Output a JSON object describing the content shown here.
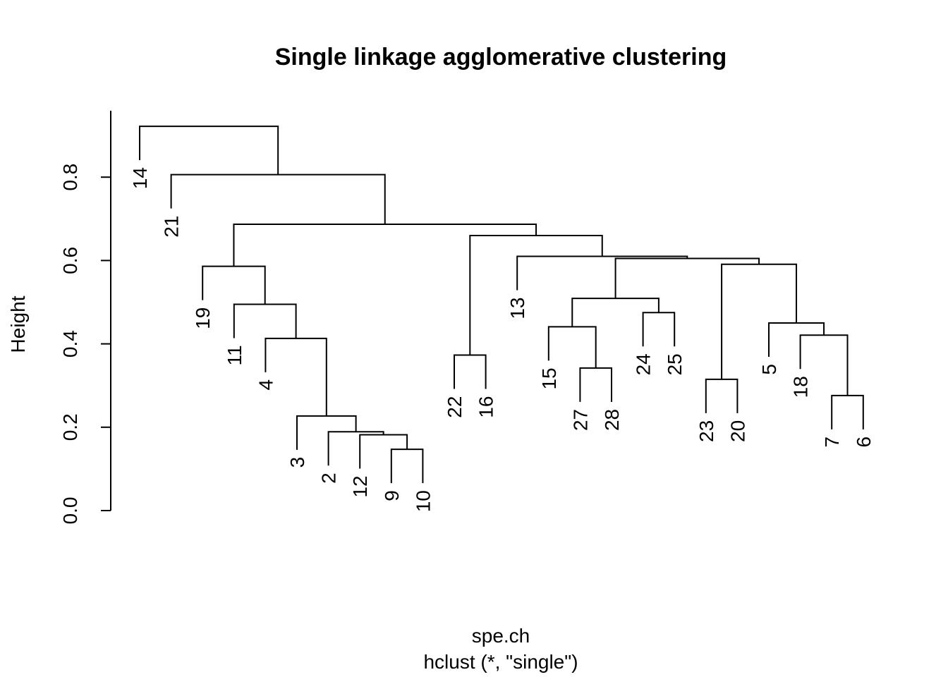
{
  "chart_data": {
    "type": "dendrogram",
    "title": "Single linkage agglomerative clustering",
    "xlabel": "spe.ch",
    "sublabel": "hclust (*, \"single\")",
    "ylabel": "Height",
    "ylim": [
      0,
      0.92
    ],
    "yticks": [
      0.0,
      0.2,
      0.4,
      0.6,
      0.8
    ],
    "ytick_labels": [
      "0.0",
      "0.2",
      "0.4",
      "0.6",
      "0.8"
    ],
    "leaves": [
      "14",
      "21",
      "19",
      "11",
      "4",
      "3",
      "2",
      "12",
      "9",
      "10",
      "22",
      "16",
      "13",
      "15",
      "27",
      "28",
      "24",
      "25",
      "23",
      "20",
      "5",
      "18",
      "7",
      "6"
    ],
    "merges": [
      {
        "a": "9",
        "b": "10",
        "height": 0.147
      },
      {
        "a": "12",
        "b": "9+10",
        "height": 0.182
      },
      {
        "a": "2",
        "b": "12+9+10",
        "height": 0.189
      },
      {
        "a": "3",
        "b": "2+12+9+10",
        "height": 0.227
      },
      {
        "a": "7",
        "b": "6",
        "height": 0.276
      },
      {
        "a": "23",
        "b": "20",
        "height": 0.315
      },
      {
        "a": "27",
        "b": "28",
        "height": 0.342
      },
      {
        "a": "22",
        "b": "16",
        "height": 0.373
      },
      {
        "a": "4",
        "b": "3+2+12+9+10",
        "height": 0.413
      },
      {
        "a": "18",
        "b": "7+6",
        "height": 0.421
      },
      {
        "a": "15",
        "b": "27+28",
        "height": 0.441
      },
      {
        "a": "5",
        "b": "18+7+6",
        "height": 0.45
      },
      {
        "a": "24",
        "b": "25",
        "height": 0.475
      },
      {
        "a": "11",
        "b": "4+3+2+12+9+10",
        "height": 0.495
      },
      {
        "a": "15+27+28",
        "b": "24+25",
        "height": 0.509
      },
      {
        "a": "19",
        "b": "11+4+...",
        "height": 0.586
      },
      {
        "a": "23+20",
        "b": "5+18+7+6",
        "height": 0.591
      },
      {
        "a": "15+27+28+24+25",
        "b": "23+20+5+18+7+6",
        "height": 0.605
      },
      {
        "a": "13",
        "b": "15+...+6",
        "height": 0.61
      },
      {
        "a": "22+16",
        "b": "13+...+6",
        "height": 0.66
      },
      {
        "a": "19+11+...",
        "b": "22+16+13+...",
        "height": 0.687
      },
      {
        "a": "21",
        "b": "19+...+6",
        "height": 0.806
      },
      {
        "a": "14",
        "b": "21+...+6",
        "height": 0.922
      }
    ]
  }
}
